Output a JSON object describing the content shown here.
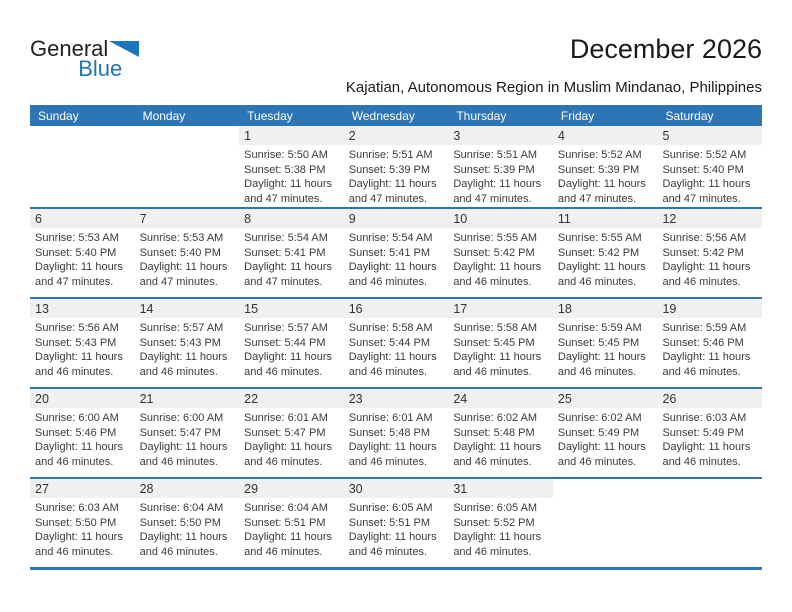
{
  "logo": {
    "line1": "General",
    "line2": "Blue"
  },
  "header": {
    "title": "December 2026",
    "subtitle": "Kajatian, Autonomous Region in Muslim Mindanao, Philippines"
  },
  "colors": {
    "accent_blue": "#2e75b6",
    "logo_blue": "#1b75bb",
    "day_band_gray": "#f0f0f0"
  },
  "calendar": {
    "weekdays": [
      "Sunday",
      "Monday",
      "Tuesday",
      "Wednesday",
      "Thursday",
      "Friday",
      "Saturday"
    ],
    "weeks": [
      [
        null,
        null,
        {
          "day": "1",
          "sunrise": "Sunrise: 5:50 AM",
          "sunset": "Sunset: 5:38 PM",
          "daylight": "Daylight: 11 hours and 47 minutes."
        },
        {
          "day": "2",
          "sunrise": "Sunrise: 5:51 AM",
          "sunset": "Sunset: 5:39 PM",
          "daylight": "Daylight: 11 hours and 47 minutes."
        },
        {
          "day": "3",
          "sunrise": "Sunrise: 5:51 AM",
          "sunset": "Sunset: 5:39 PM",
          "daylight": "Daylight: 11 hours and 47 minutes."
        },
        {
          "day": "4",
          "sunrise": "Sunrise: 5:52 AM",
          "sunset": "Sunset: 5:39 PM",
          "daylight": "Daylight: 11 hours and 47 minutes."
        },
        {
          "day": "5",
          "sunrise": "Sunrise: 5:52 AM",
          "sunset": "Sunset: 5:40 PM",
          "daylight": "Daylight: 11 hours and 47 minutes."
        }
      ],
      [
        {
          "day": "6",
          "sunrise": "Sunrise: 5:53 AM",
          "sunset": "Sunset: 5:40 PM",
          "daylight": "Daylight: 11 hours and 47 minutes."
        },
        {
          "day": "7",
          "sunrise": "Sunrise: 5:53 AM",
          "sunset": "Sunset: 5:40 PM",
          "daylight": "Daylight: 11 hours and 47 minutes."
        },
        {
          "day": "8",
          "sunrise": "Sunrise: 5:54 AM",
          "sunset": "Sunset: 5:41 PM",
          "daylight": "Daylight: 11 hours and 47 minutes."
        },
        {
          "day": "9",
          "sunrise": "Sunrise: 5:54 AM",
          "sunset": "Sunset: 5:41 PM",
          "daylight": "Daylight: 11 hours and 46 minutes."
        },
        {
          "day": "10",
          "sunrise": "Sunrise: 5:55 AM",
          "sunset": "Sunset: 5:42 PM",
          "daylight": "Daylight: 11 hours and 46 minutes."
        },
        {
          "day": "11",
          "sunrise": "Sunrise: 5:55 AM",
          "sunset": "Sunset: 5:42 PM",
          "daylight": "Daylight: 11 hours and 46 minutes."
        },
        {
          "day": "12",
          "sunrise": "Sunrise: 5:56 AM",
          "sunset": "Sunset: 5:42 PM",
          "daylight": "Daylight: 11 hours and 46 minutes."
        }
      ],
      [
        {
          "day": "13",
          "sunrise": "Sunrise: 5:56 AM",
          "sunset": "Sunset: 5:43 PM",
          "daylight": "Daylight: 11 hours and 46 minutes."
        },
        {
          "day": "14",
          "sunrise": "Sunrise: 5:57 AM",
          "sunset": "Sunset: 5:43 PM",
          "daylight": "Daylight: 11 hours and 46 minutes."
        },
        {
          "day": "15",
          "sunrise": "Sunrise: 5:57 AM",
          "sunset": "Sunset: 5:44 PM",
          "daylight": "Daylight: 11 hours and 46 minutes."
        },
        {
          "day": "16",
          "sunrise": "Sunrise: 5:58 AM",
          "sunset": "Sunset: 5:44 PM",
          "daylight": "Daylight: 11 hours and 46 minutes."
        },
        {
          "day": "17",
          "sunrise": "Sunrise: 5:58 AM",
          "sunset": "Sunset: 5:45 PM",
          "daylight": "Daylight: 11 hours and 46 minutes."
        },
        {
          "day": "18",
          "sunrise": "Sunrise: 5:59 AM",
          "sunset": "Sunset: 5:45 PM",
          "daylight": "Daylight: 11 hours and 46 minutes."
        },
        {
          "day": "19",
          "sunrise": "Sunrise: 5:59 AM",
          "sunset": "Sunset: 5:46 PM",
          "daylight": "Daylight: 11 hours and 46 minutes."
        }
      ],
      [
        {
          "day": "20",
          "sunrise": "Sunrise: 6:00 AM",
          "sunset": "Sunset: 5:46 PM",
          "daylight": "Daylight: 11 hours and 46 minutes."
        },
        {
          "day": "21",
          "sunrise": "Sunrise: 6:00 AM",
          "sunset": "Sunset: 5:47 PM",
          "daylight": "Daylight: 11 hours and 46 minutes."
        },
        {
          "day": "22",
          "sunrise": "Sunrise: 6:01 AM",
          "sunset": "Sunset: 5:47 PM",
          "daylight": "Daylight: 11 hours and 46 minutes."
        },
        {
          "day": "23",
          "sunrise": "Sunrise: 6:01 AM",
          "sunset": "Sunset: 5:48 PM",
          "daylight": "Daylight: 11 hours and 46 minutes."
        },
        {
          "day": "24",
          "sunrise": "Sunrise: 6:02 AM",
          "sunset": "Sunset: 5:48 PM",
          "daylight": "Daylight: 11 hours and 46 minutes."
        },
        {
          "day": "25",
          "sunrise": "Sunrise: 6:02 AM",
          "sunset": "Sunset: 5:49 PM",
          "daylight": "Daylight: 11 hours and 46 minutes."
        },
        {
          "day": "26",
          "sunrise": "Sunrise: 6:03 AM",
          "sunset": "Sunset: 5:49 PM",
          "daylight": "Daylight: 11 hours and 46 minutes."
        }
      ],
      [
        {
          "day": "27",
          "sunrise": "Sunrise: 6:03 AM",
          "sunset": "Sunset: 5:50 PM",
          "daylight": "Daylight: 11 hours and 46 minutes."
        },
        {
          "day": "28",
          "sunrise": "Sunrise: 6:04 AM",
          "sunset": "Sunset: 5:50 PM",
          "daylight": "Daylight: 11 hours and 46 minutes."
        },
        {
          "day": "29",
          "sunrise": "Sunrise: 6:04 AM",
          "sunset": "Sunset: 5:51 PM",
          "daylight": "Daylight: 11 hours and 46 minutes."
        },
        {
          "day": "30",
          "sunrise": "Sunrise: 6:05 AM",
          "sunset": "Sunset: 5:51 PM",
          "daylight": "Daylight: 11 hours and 46 minutes."
        },
        {
          "day": "31",
          "sunrise": "Sunrise: 6:05 AM",
          "sunset": "Sunset: 5:52 PM",
          "daylight": "Daylight: 11 hours and 46 minutes."
        },
        null,
        null
      ]
    ]
  }
}
